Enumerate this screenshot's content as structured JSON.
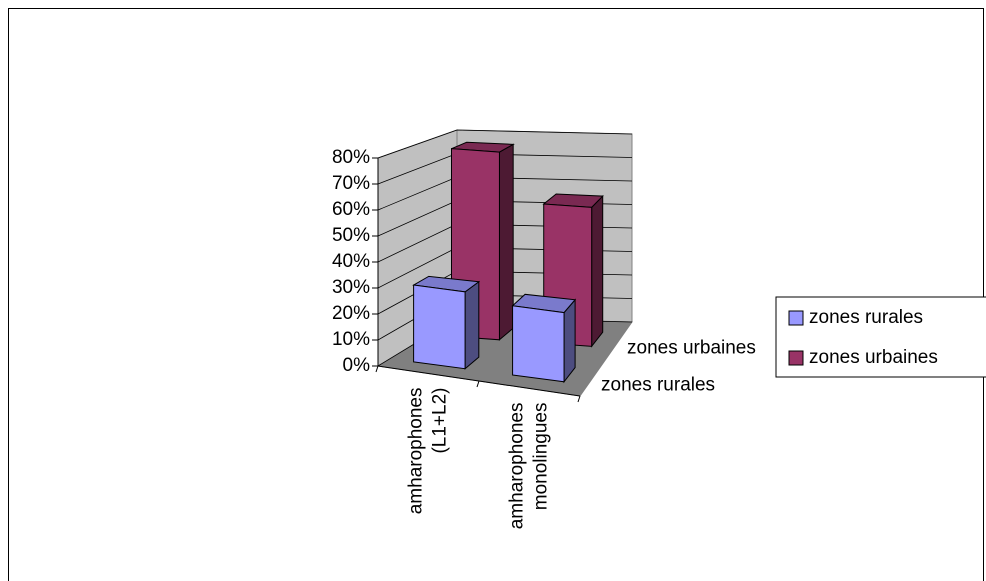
{
  "chart_data": {
    "type": "bar3d",
    "categories": [
      "amharophones (L1+L2)",
      "amharophones monolingues"
    ],
    "series": [
      {
        "name": "zones rurales",
        "color": "#9999ff",
        "values": [
          30,
          27
        ]
      },
      {
        "name": "zones urbaines",
        "color": "#993366",
        "values": [
          77,
          57
        ]
      }
    ],
    "ylim": [
      0,
      80
    ],
    "yticks": [
      {
        "value": 0,
        "label": "0%"
      },
      {
        "value": 10,
        "label": "10%"
      },
      {
        "value": 20,
        "label": "20%"
      },
      {
        "value": 30,
        "label": "30%"
      },
      {
        "value": 40,
        "label": "40%"
      },
      {
        "value": 50,
        "label": "50%"
      },
      {
        "value": 60,
        "label": "60%"
      },
      {
        "value": 70,
        "label": "70%"
      },
      {
        "value": 80,
        "label": "80%"
      }
    ],
    "grid": true
  }
}
